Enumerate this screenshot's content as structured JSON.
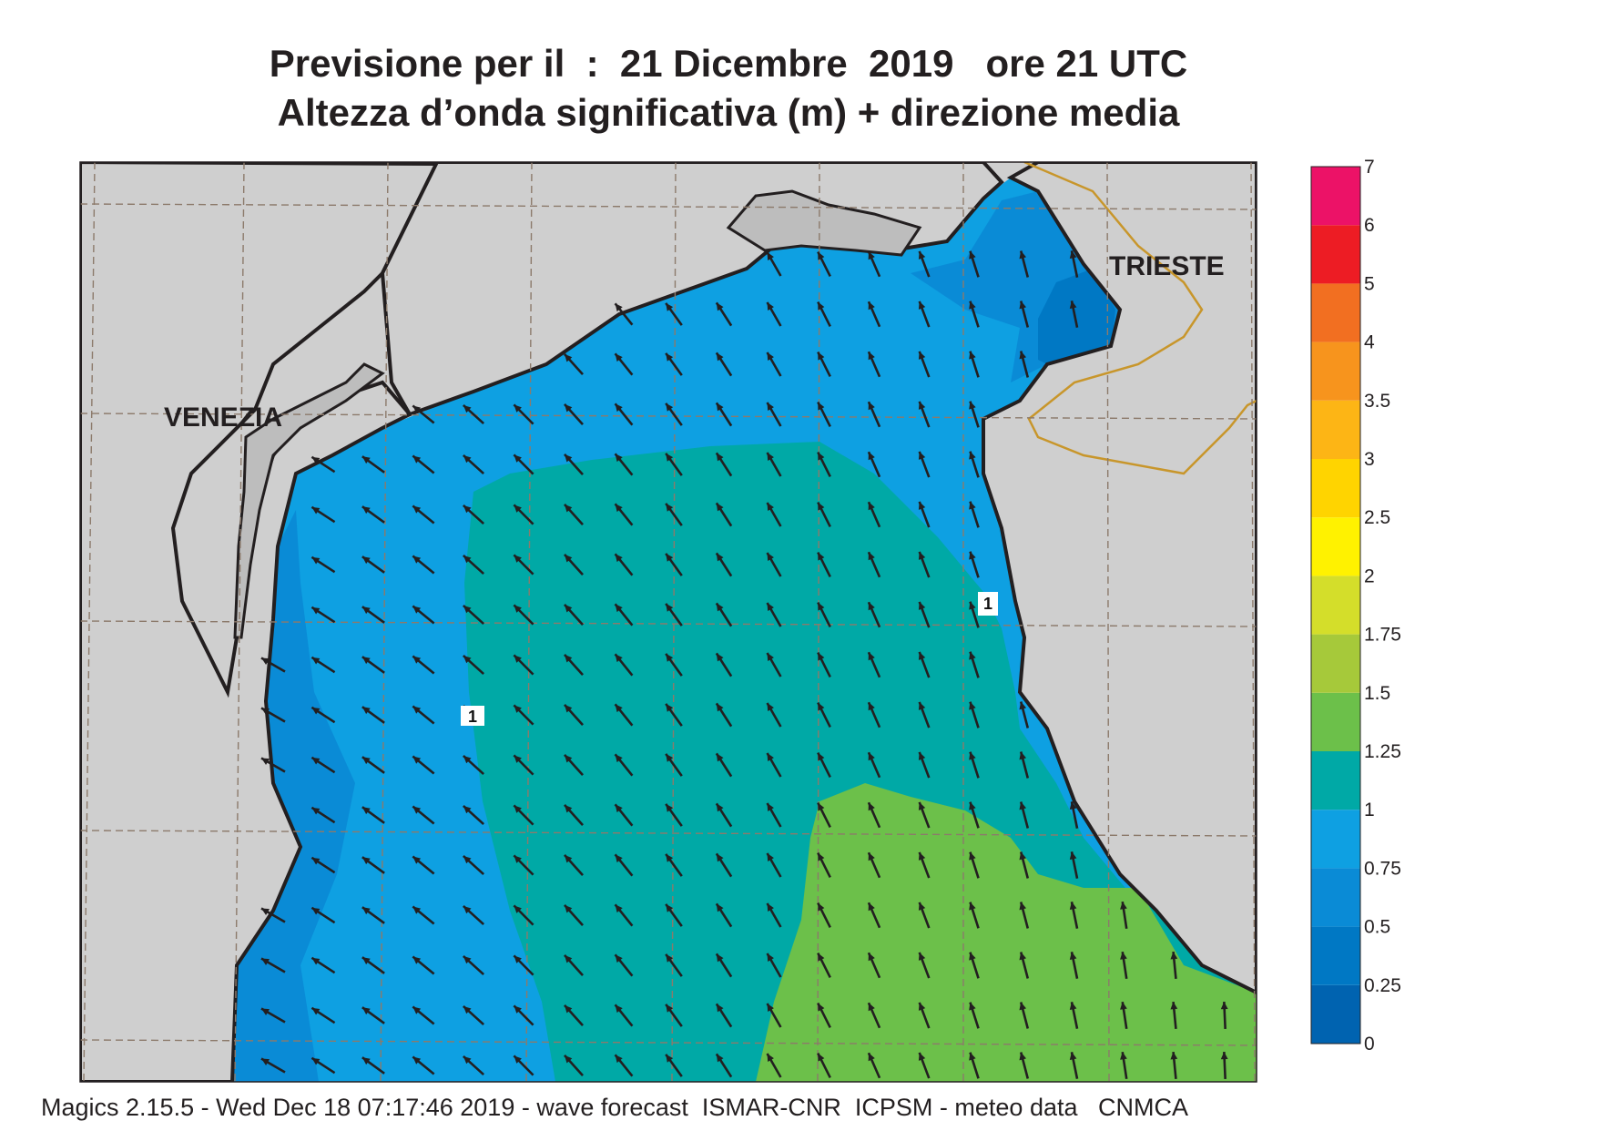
{
  "title_line1": "Previsione per il  :  21 Dicembre  2019   ore 21 UTC",
  "title_line2": "Altezza d’onda significativa (m) + direzione media",
  "places": {
    "venezia": "VENEZIA",
    "trieste": "TRIESTE"
  },
  "contour_label": "1",
  "footer": "Magics 2.15.5 - Wed Dec 18 07:17:46 2019 - wave forecast  ISMAR-CNR  ICPSM - meteo data   CNMCA",
  "colorbar": {
    "levels": [
      {
        "value": "0",
        "color": "#0063b0"
      },
      {
        "value": "0.25",
        "color": "#0078c4"
      },
      {
        "value": "0.5",
        "color": "#0a8bd6"
      },
      {
        "value": "0.75",
        "color": "#0ea0e2"
      },
      {
        "value": "1",
        "color": "#00a9a6"
      },
      {
        "value": "1.25",
        "color": "#6cc04a"
      },
      {
        "value": "1.5",
        "color": "#a6c93a"
      },
      {
        "value": "1.75",
        "color": "#d4de2a"
      },
      {
        "value": "2",
        "color": "#fff200"
      },
      {
        "value": "2.5",
        "color": "#ffd400"
      },
      {
        "value": "3",
        "color": "#fdb515"
      },
      {
        "value": "3.5",
        "color": "#f7941d"
      },
      {
        "value": "4",
        "color": "#f26f21"
      },
      {
        "value": "5",
        "color": "#ed1c24"
      },
      {
        "value": "6",
        "color": "#ec1267"
      },
      {
        "value": "7",
        "color": ""
      }
    ]
  },
  "colors": {
    "land": "#cfcfcf",
    "coast": "#231f20",
    "border": "#c8962b",
    "grid": "#8c7a6b"
  }
}
